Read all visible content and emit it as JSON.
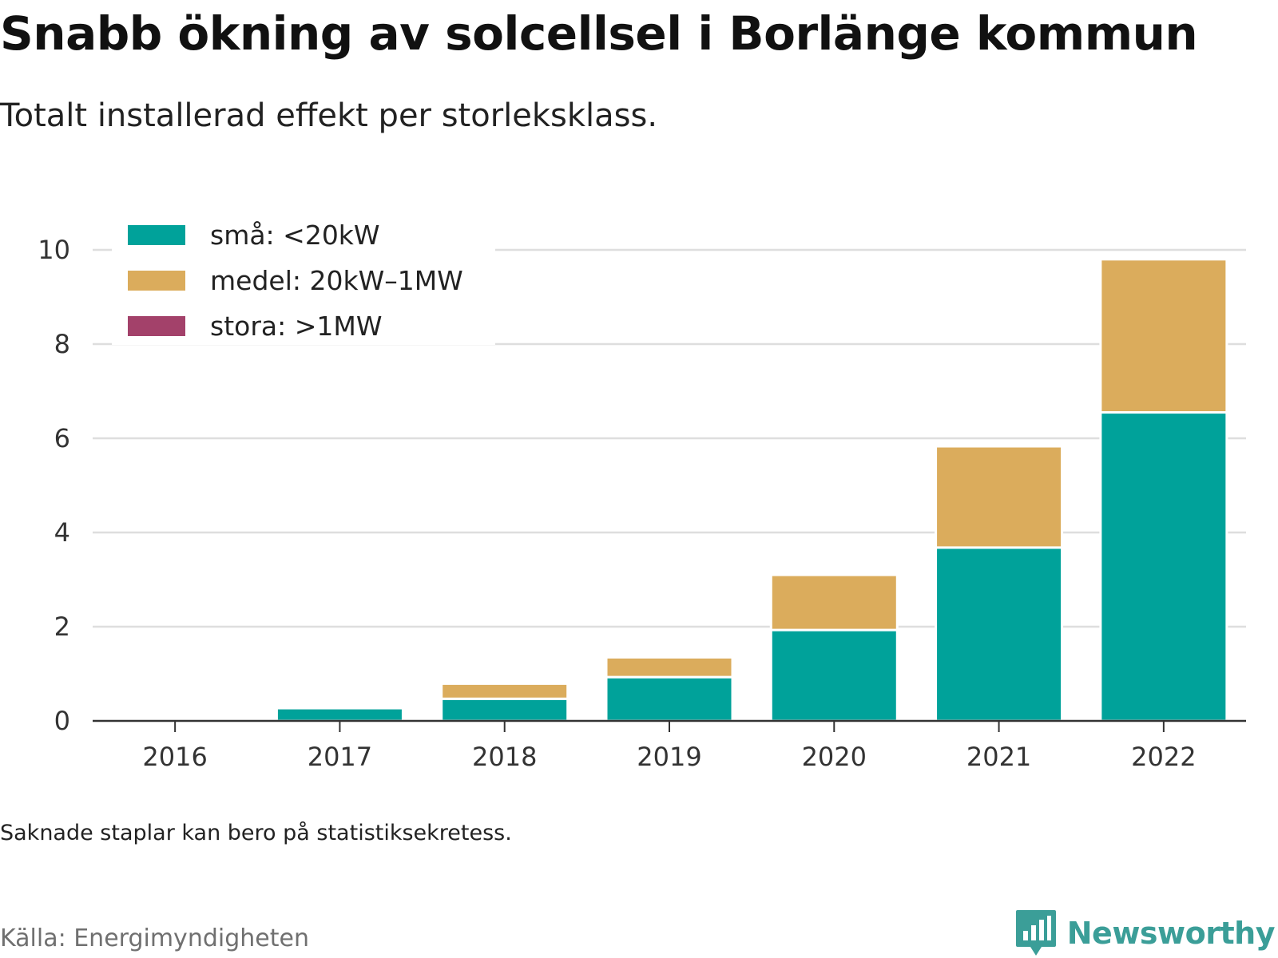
{
  "header": {
    "title": "Snabb ökning av solcellsel i Borlänge kommun",
    "subtitle": "Totalt installerad effekt per storleksklass."
  },
  "footer": {
    "note": "Saknade staplar kan bero på statistiksekretess.",
    "source": "Källa: Energimyndigheten",
    "brand": "Newsworthy",
    "brand_icon": "bar-chart-speech-bubble-icon"
  },
  "chart_data": {
    "type": "bar",
    "stacked": true,
    "categories": [
      "2016",
      "2017",
      "2018",
      "2019",
      "2020",
      "2021",
      "2022"
    ],
    "series": [
      {
        "name": "små: <20kW",
        "color": "#00a29a",
        "values": [
          0.0,
          0.27,
          0.47,
          0.93,
          1.93,
          3.68,
          6.55
        ]
      },
      {
        "name": "medel: 20kW–1MW",
        "color": "#dbac5c",
        "values": [
          0.0,
          0.0,
          0.32,
          0.42,
          1.17,
          2.15,
          3.25
        ]
      },
      {
        "name": "stora: >1MW",
        "color": "#a3416a",
        "values": [
          0,
          0,
          0,
          0,
          0,
          0,
          0
        ]
      }
    ],
    "ylim": [
      0,
      10
    ],
    "yticks": [
      "0",
      "2",
      "4",
      "6",
      "8",
      "10"
    ],
    "grid": true,
    "legend_position": "top-left"
  }
}
